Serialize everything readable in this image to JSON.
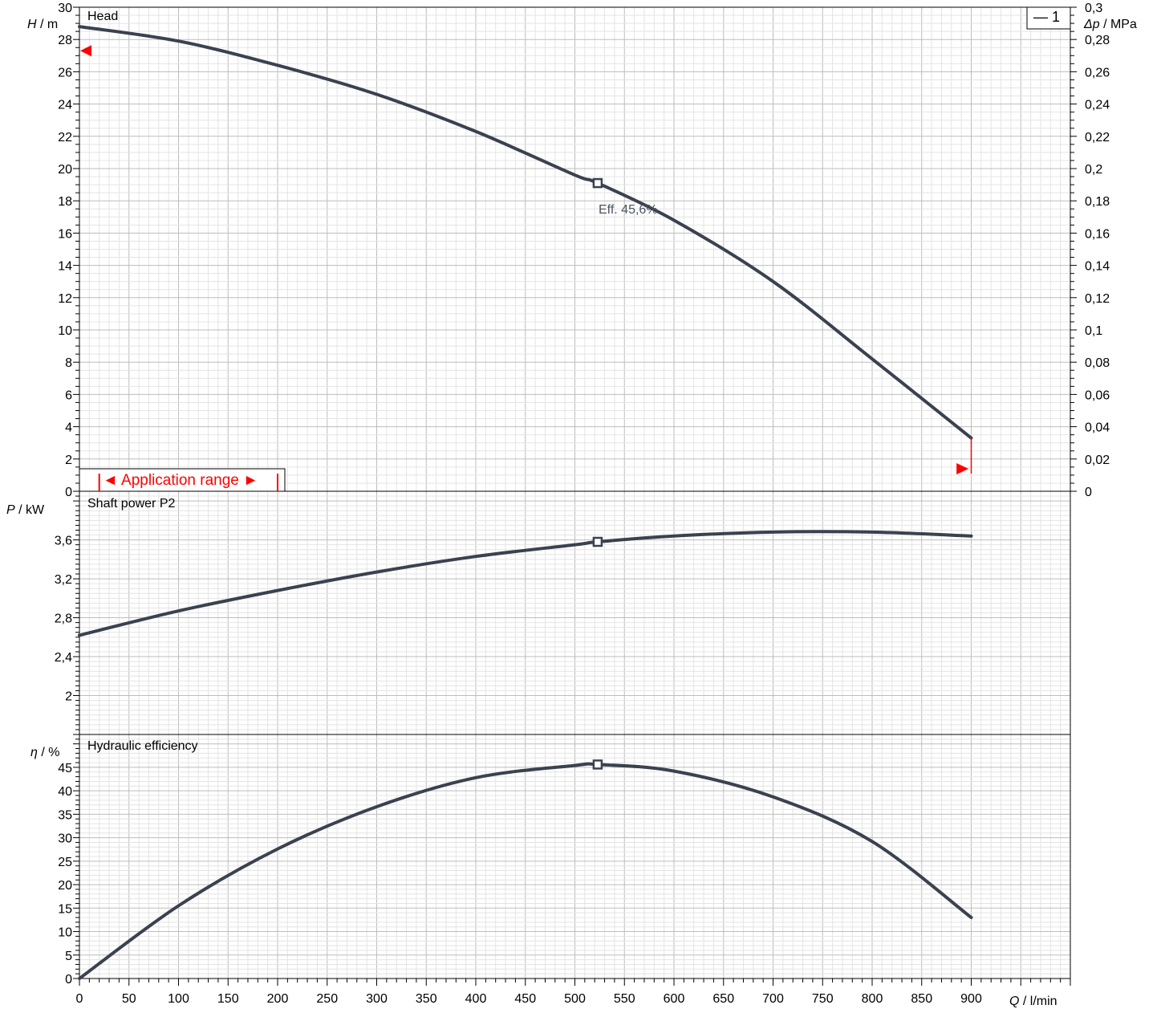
{
  "colors": {
    "curve": "#3a424f",
    "grid_minor": "#e4e4e4",
    "grid_major": "#bdbdbd",
    "axis": "#000000",
    "range_marker": "#ff0000",
    "annotation": "#4a5360"
  },
  "x_axis": {
    "label_var": "Q",
    "label_unit": " / l/min",
    "min": 0,
    "max": 1000,
    "ticks": [
      "0",
      "50",
      "100",
      "150",
      "200",
      "250",
      "300",
      "350",
      "400",
      "450",
      "500",
      "550",
      "600",
      "650",
      "700",
      "750",
      "800",
      "850",
      "900"
    ]
  },
  "legend": {
    "label": "1",
    "position": "top-right"
  },
  "chart_data": [
    {
      "type": "line",
      "title": "Head",
      "ylabel_var": "H",
      "ylabel_unit": " / m",
      "ylim": [
        0,
        30
      ],
      "yticks": [
        "0",
        "2",
        "4",
        "6",
        "8",
        "10",
        "12",
        "14",
        "16",
        "18",
        "20",
        "22",
        "24",
        "26",
        "28",
        "30"
      ],
      "y2label_var": "Δp",
      "y2label_unit": " / MPa",
      "y2lim": [
        0,
        0.3
      ],
      "y2ticks": [
        "0",
        "0,02",
        "0,04",
        "0,06",
        "0,08",
        "0,1",
        "0,12",
        "0,14",
        "0,16",
        "0,18",
        "0,2",
        "0,22",
        "0,24",
        "0,26",
        "0,28",
        "0,3"
      ],
      "grid": true,
      "series": [
        {
          "name": "1",
          "x": [
            0,
            100,
            200,
            300,
            400,
            500,
            523,
            600,
            700,
            800,
            900
          ],
          "y": [
            28.8,
            27.9,
            26.4,
            24.6,
            22.3,
            19.6,
            19.1,
            16.8,
            13.0,
            8.2,
            3.3
          ]
        }
      ],
      "duty_point": {
        "x": 523,
        "y": 19.1,
        "annotation": "Eff.  45,6%"
      },
      "application_range": {
        "label": "Application range",
        "min": 20,
        "max": 200,
        "marker_left_y": 27.3,
        "marker_right_x": 890
      }
    },
    {
      "type": "line",
      "title": "Shaft power P2",
      "ylabel_var": "P",
      "ylabel_unit": "  / kW",
      "ylim": [
        1.6,
        4.1
      ],
      "yticks": [
        "2",
        "2,4",
        "2,8",
        "3,2",
        "3,6"
      ],
      "grid": true,
      "series": [
        {
          "name": "1",
          "x": [
            0,
            100,
            200,
            300,
            400,
            500,
            523,
            600,
            700,
            800,
            900
          ],
          "y": [
            2.62,
            2.87,
            3.08,
            3.27,
            3.43,
            3.55,
            3.58,
            3.64,
            3.68,
            3.68,
            3.64
          ]
        }
      ],
      "duty_point": {
        "x": 523,
        "y": 3.58
      }
    },
    {
      "type": "line",
      "title": "Hydraulic efficiency",
      "ylabel_var": "η",
      "ylabel_unit": " / %",
      "ylim": [
        0,
        52
      ],
      "yticks": [
        "0",
        "5",
        "10",
        "15",
        "20",
        "25",
        "30",
        "35",
        "40",
        "45"
      ],
      "grid": true,
      "series": [
        {
          "name": "1",
          "x": [
            0,
            100,
            200,
            300,
            400,
            500,
            523,
            600,
            700,
            800,
            900
          ],
          "y": [
            0,
            15.5,
            27.6,
            36.6,
            42.8,
            45.4,
            45.6,
            44.2,
            38.7,
            29.2,
            13.0
          ]
        }
      ],
      "duty_point": {
        "x": 523,
        "y": 45.6
      }
    }
  ]
}
